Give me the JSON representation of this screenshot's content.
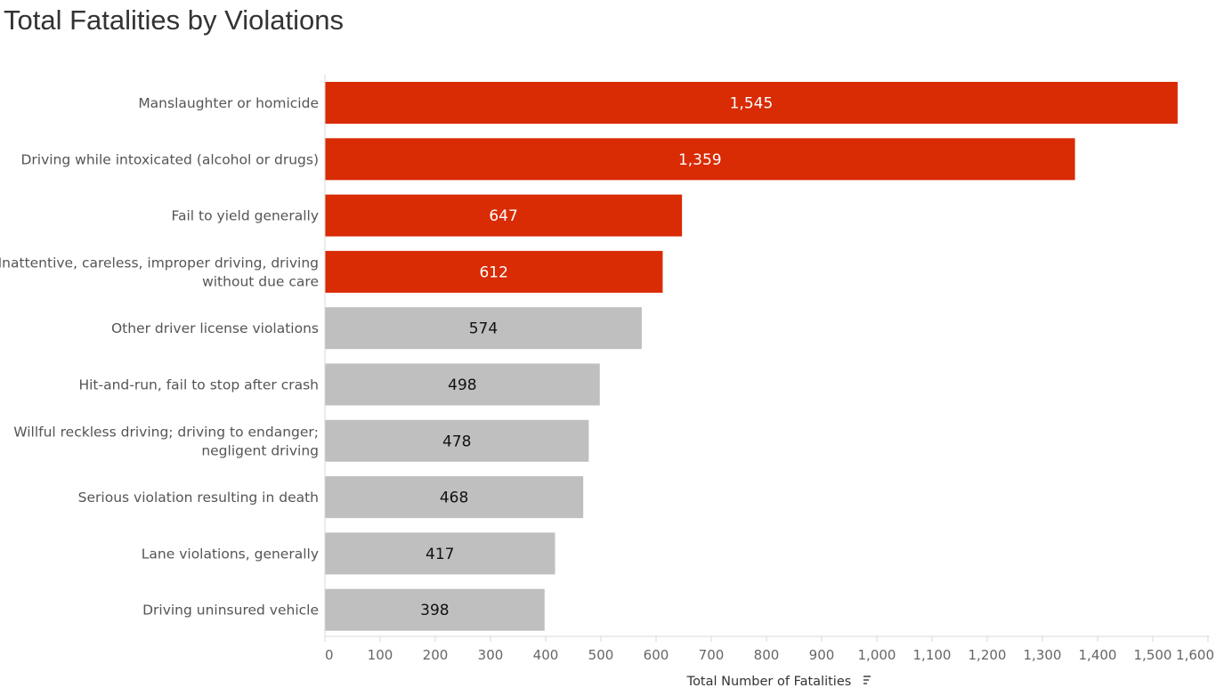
{
  "chart_data": {
    "type": "bar",
    "orientation": "horizontal",
    "title": "Total Fatalities by Violations",
    "xlabel": "Total Number of Fatalities",
    "ylabel": "",
    "xlim": [
      0,
      1600
    ],
    "xticks": [
      0,
      100,
      200,
      300,
      400,
      500,
      600,
      700,
      800,
      900,
      1000,
      1100,
      1200,
      1300,
      1400,
      1500,
      1600
    ],
    "xtick_labels": [
      "0",
      "100",
      "200",
      "300",
      "400",
      "500",
      "600",
      "700",
      "800",
      "900",
      "1,000",
      "1,100",
      "1,200",
      "1,300",
      "1,400",
      "1,500",
      "1,600"
    ],
    "grid": false,
    "categories": [
      [
        "Manslaughter or homicide"
      ],
      [
        "Driving while intoxicated (alcohol or drugs)"
      ],
      [
        "Fail to yield generally"
      ],
      [
        "Inattentive, careless, improper driving, driving",
        "without due care"
      ],
      [
        "Other driver license violations"
      ],
      [
        "Hit-and-run, fail to stop after crash"
      ],
      [
        "Willful reckless driving; driving to endanger;",
        "negligent driving"
      ],
      [
        "Serious violation resulting in death"
      ],
      [
        "Lane violations, generally"
      ],
      [
        "Driving uninsured vehicle"
      ]
    ],
    "values": [
      1545,
      1359,
      647,
      612,
      574,
      498,
      478,
      468,
      417,
      398
    ],
    "value_labels": [
      "1,545",
      "1,359",
      "647",
      "612",
      "574",
      "498",
      "478",
      "468",
      "417",
      "398"
    ],
    "highlight_count": 4,
    "colors": {
      "highlight": "#d92b04",
      "default": "#bfbfbf",
      "highlight_label": "#ffffff",
      "default_label": "#111111",
      "axis": "#d9d9d9"
    },
    "sort_icon": "sort-descending-icon"
  }
}
